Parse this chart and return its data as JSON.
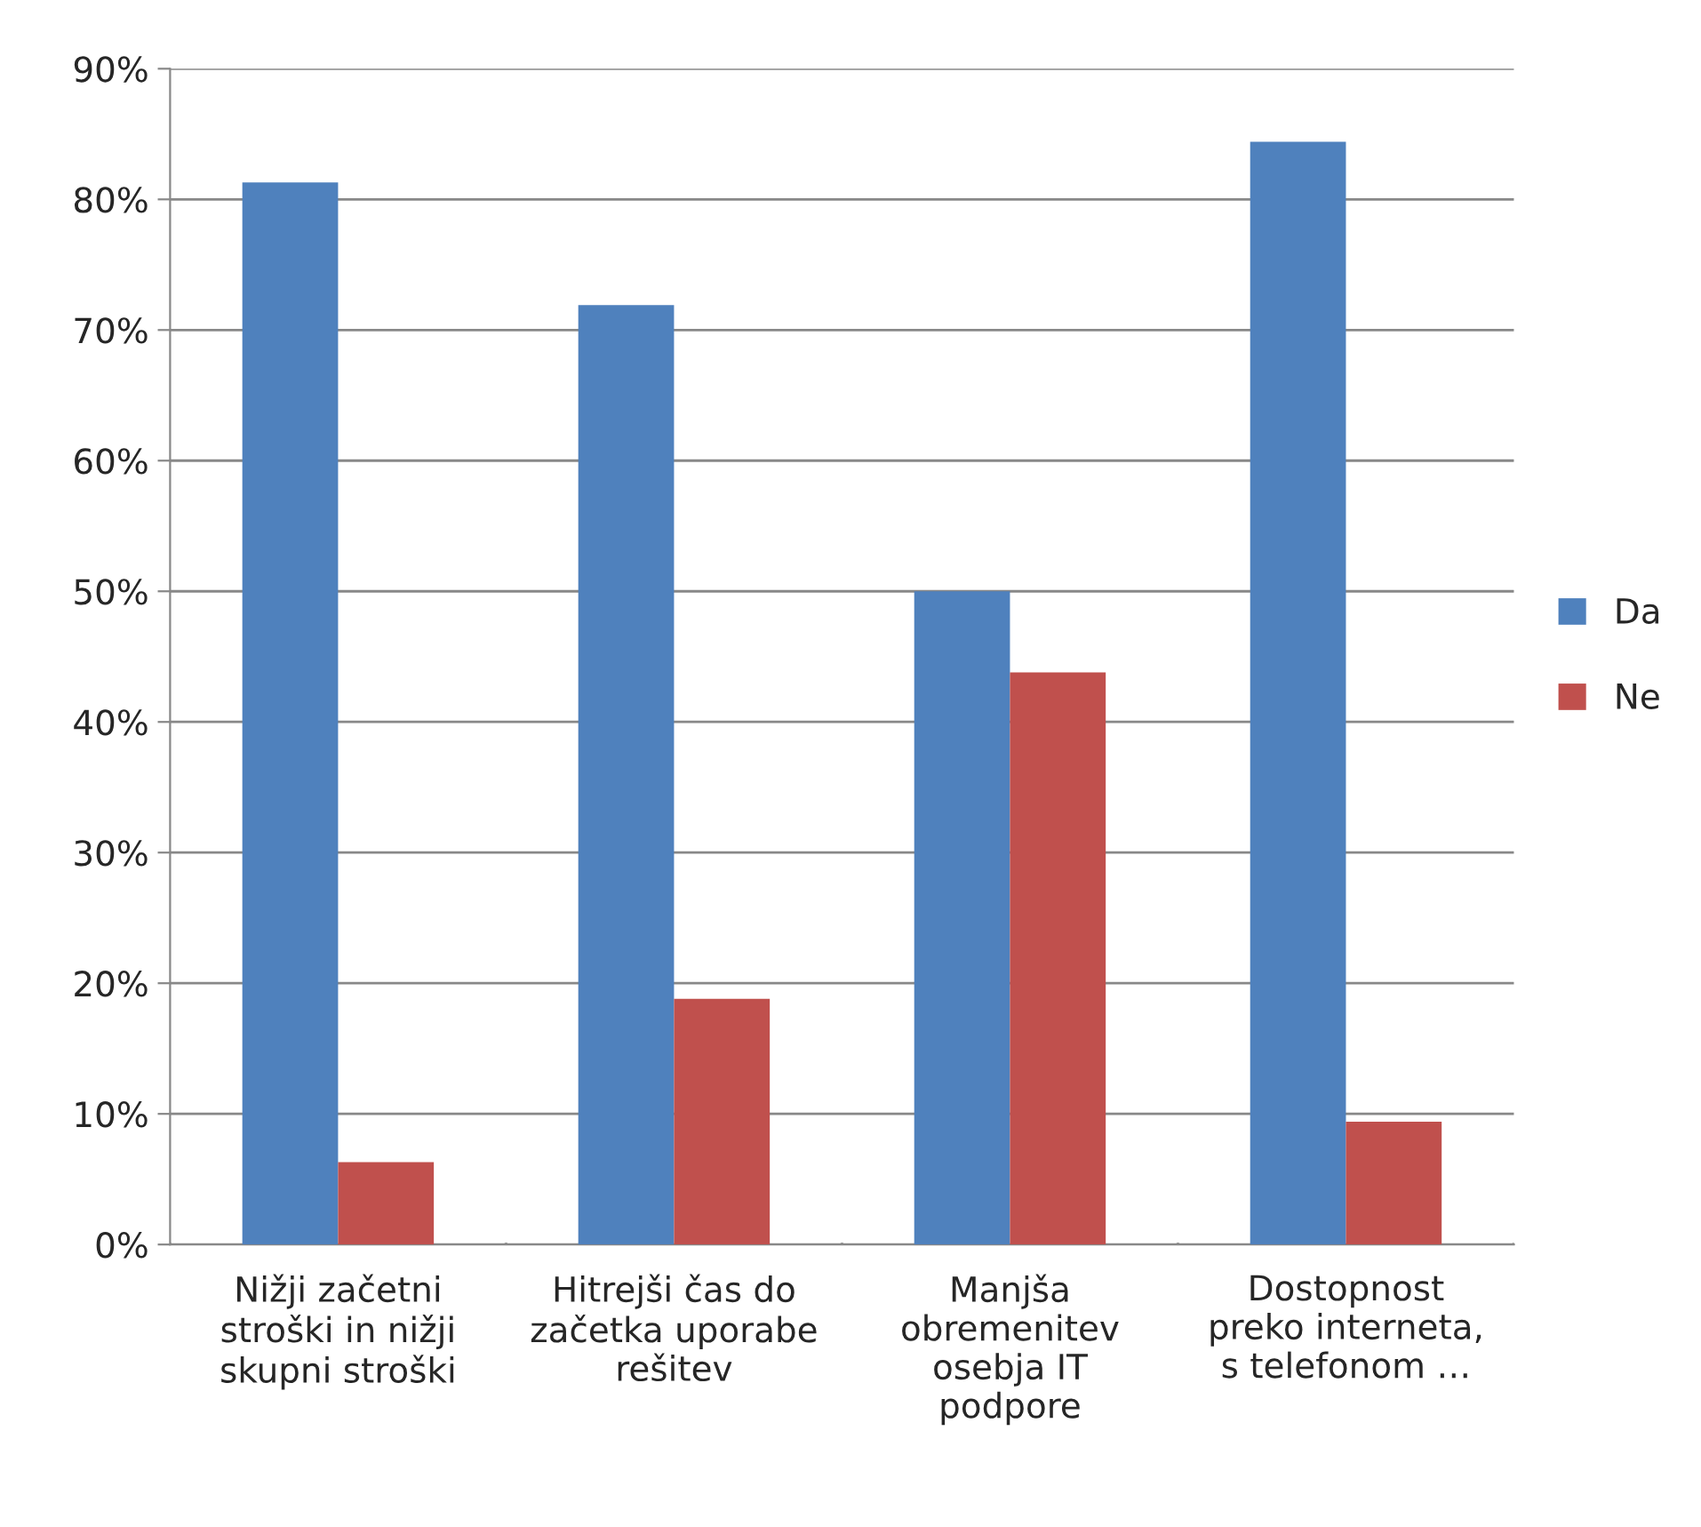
{
  "chart_data": {
    "type": "bar",
    "categories": [
      "Nižji začetni\nstroški in nižji\nskupni stroški",
      "Hitrejši čas do\nzačetka uporabe\nrešitev",
      "Manjša\nobremenitev\nosebja IT\npodpore",
      "Dostopnost\npreko interneta,\ns telefonom …"
    ],
    "series": [
      {
        "name": "Da",
        "color": "#4f81bd",
        "values": [
          81.3,
          71.9,
          50.0,
          84.4
        ]
      },
      {
        "name": "Ne",
        "color": "#c0504d",
        "values": [
          6.3,
          18.8,
          43.8,
          9.4
        ]
      }
    ],
    "ylim": [
      0,
      90
    ],
    "yticks": [
      {
        "value": 0,
        "label": "0%"
      },
      {
        "value": 10,
        "label": "10%"
      },
      {
        "value": 20,
        "label": "20%"
      },
      {
        "value": 30,
        "label": "30%"
      },
      {
        "value": 40,
        "label": "40%"
      },
      {
        "value": 50,
        "label": "50%"
      },
      {
        "value": 60,
        "label": "60%"
      },
      {
        "value": 70,
        "label": "70%"
      },
      {
        "value": 80,
        "label": "80%"
      },
      {
        "value": 90,
        "label": "90%"
      }
    ],
    "grid": "y",
    "legend": "right"
  }
}
